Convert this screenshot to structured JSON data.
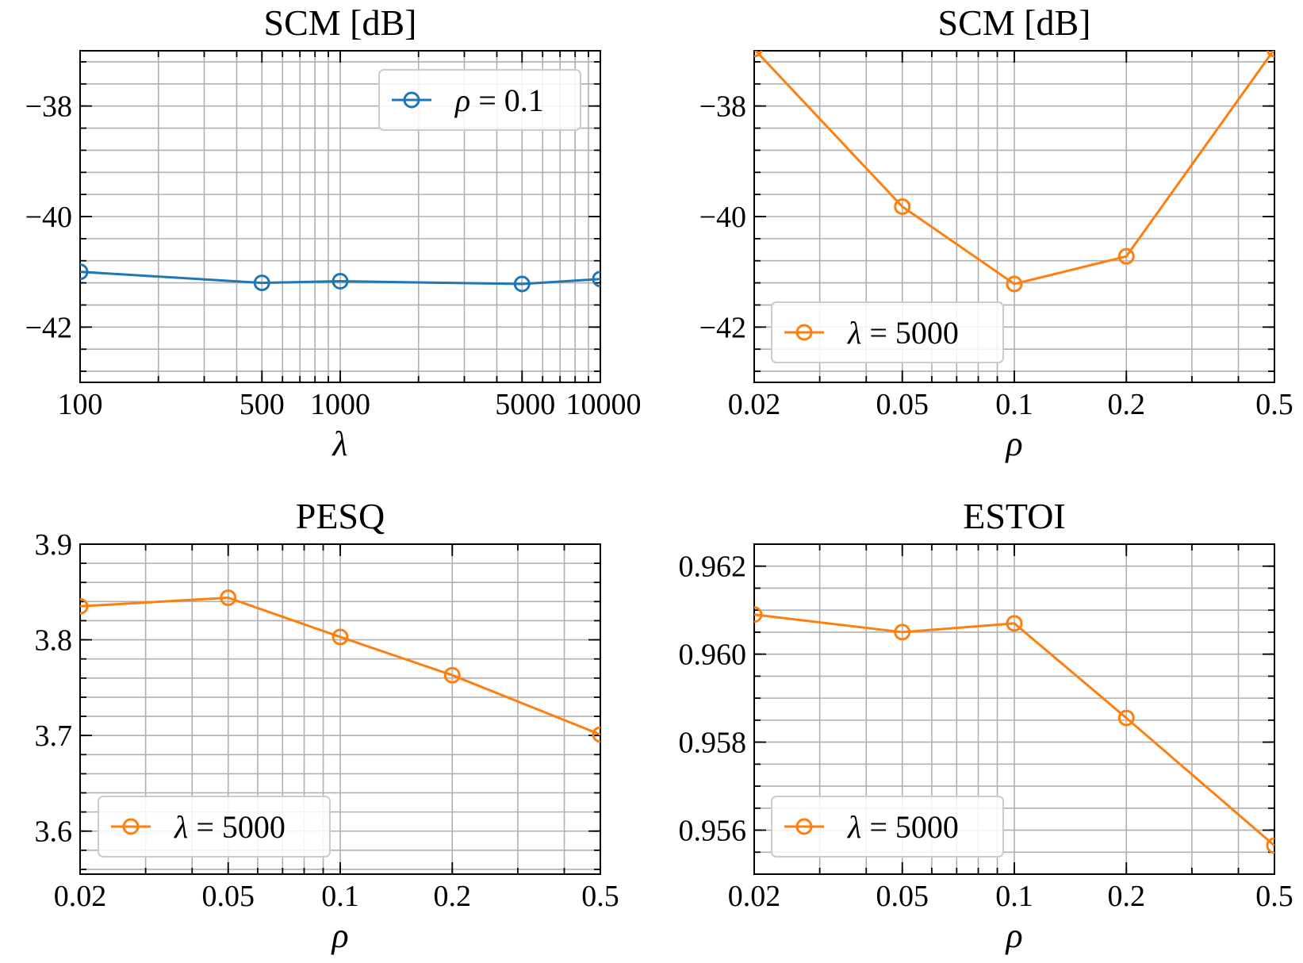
{
  "chart_data": [
    {
      "type": "line",
      "title": "SCM [dB]",
      "xlabel": "λ",
      "ylabel": "",
      "xscale": "log",
      "xlim": [
        100,
        10000
      ],
      "ylim": [
        -43,
        -37
      ],
      "xticks": [
        100,
        500,
        1000,
        5000,
        10000
      ],
      "xtick_labels": [
        "100",
        "500",
        "1000",
        "5000",
        "10000"
      ],
      "yticks": [
        -38,
        -40,
        -42
      ],
      "ytick_labels": [
        "−38",
        "−40",
        "−42"
      ],
      "grid": true,
      "legend_position": "top-right",
      "series": [
        {
          "name": "ρ = 0.1",
          "legend_symbol": "ρ",
          "legend_rest": " = 0.1",
          "color": "#1f77b4",
          "x": [
            100,
            500,
            1000,
            5000,
            10000
          ],
          "y": [
            -41.0,
            -41.2,
            -41.17,
            -41.22,
            -41.13
          ]
        }
      ]
    },
    {
      "type": "line",
      "title": "SCM [dB]",
      "xlabel": "ρ",
      "ylabel": "",
      "xscale": "log",
      "xlim": [
        0.02,
        0.5
      ],
      "ylim": [
        -43,
        -37
      ],
      "xticks": [
        0.02,
        0.05,
        0.1,
        0.2,
        0.5
      ],
      "xtick_labels": [
        "0.02",
        "0.05",
        "0.1",
        "0.2",
        "0.5"
      ],
      "yticks": [
        -38,
        -40,
        -42
      ],
      "ytick_labels": [
        "−38",
        "−40",
        "−42"
      ],
      "grid": true,
      "legend_position": "bottom-left",
      "series": [
        {
          "name": "λ = 5000",
          "legend_symbol": "λ",
          "legend_rest": " = 5000",
          "color": "#ff7f0e",
          "x": [
            0.02,
            0.05,
            0.1,
            0.2,
            0.5
          ],
          "y": [
            -36.97,
            -39.82,
            -41.22,
            -40.72,
            -36.97
          ]
        }
      ]
    },
    {
      "type": "line",
      "title": "PESQ",
      "xlabel": "ρ",
      "ylabel": "",
      "xscale": "log",
      "xlim": [
        0.02,
        0.5
      ],
      "ylim": [
        3.555,
        3.9
      ],
      "xticks": [
        0.02,
        0.05,
        0.1,
        0.2,
        0.5
      ],
      "xtick_labels": [
        "0.02",
        "0.05",
        "0.1",
        "0.2",
        "0.5"
      ],
      "yticks": [
        3.6,
        3.7,
        3.8,
        3.9
      ],
      "ytick_labels": [
        "3.6",
        "3.7",
        "3.8",
        "3.9"
      ],
      "grid": true,
      "legend_position": "bottom-left",
      "series": [
        {
          "name": "λ = 5000",
          "legend_symbol": "λ",
          "legend_rest": " = 5000",
          "color": "#ff7f0e",
          "x": [
            0.02,
            0.05,
            0.1,
            0.2,
            0.5
          ],
          "y": [
            3.835,
            3.844,
            3.803,
            3.763,
            3.701
          ]
        }
      ]
    },
    {
      "type": "line",
      "title": "ESTOI",
      "xlabel": "ρ",
      "ylabel": "",
      "xscale": "log",
      "xlim": [
        0.02,
        0.5
      ],
      "ylim": [
        0.955,
        0.9625
      ],
      "xticks": [
        0.02,
        0.05,
        0.1,
        0.2,
        0.5
      ],
      "xtick_labels": [
        "0.02",
        "0.05",
        "0.1",
        "0.2",
        "0.5"
      ],
      "yticks": [
        0.956,
        0.958,
        0.96,
        0.962
      ],
      "ytick_labels": [
        "0.956",
        "0.958",
        "0.960",
        "0.962"
      ],
      "grid": true,
      "legend_position": "bottom-left",
      "series": [
        {
          "name": "λ = 5000",
          "legend_symbol": "λ",
          "legend_rest": " = 5000",
          "color": "#ff7f0e",
          "x": [
            0.02,
            0.05,
            0.1,
            0.2,
            0.5
          ],
          "y": [
            0.9609,
            0.9605,
            0.9607,
            0.95855,
            0.95565
          ]
        }
      ]
    }
  ]
}
